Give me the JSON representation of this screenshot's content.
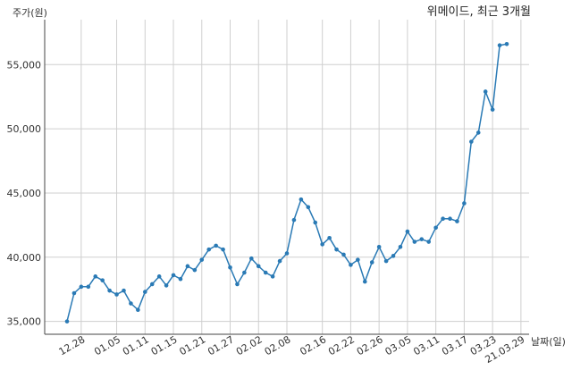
{
  "chart_data": {
    "type": "line",
    "title": "위메이드, 최근 3개월",
    "ylabel": "주가(원)",
    "xlabel": "날짜(일)",
    "ylim": [
      34000,
      58500
    ],
    "yticks": [
      35000,
      40000,
      45000,
      50000,
      55000
    ],
    "ytick_labels": [
      "35,000",
      "40,000",
      "45,000",
      "50,000",
      "55,000"
    ],
    "grid": true,
    "legend": "none",
    "colors": {
      "line": "#2a7ab5",
      "grid": "#cfcfcf",
      "axis": "#444444"
    },
    "xtick_labels": [
      "12.28",
      "01.05",
      "01.11",
      "01.15",
      "01.21",
      "01.27",
      "02.02",
      "02.08",
      "02.16",
      "02.22",
      "02.26",
      "03.05",
      "03.11",
      "03.17",
      "03.23",
      "21.03.29"
    ],
    "xtick_positions": [
      2,
      7,
      11,
      15,
      19,
      23,
      27,
      31,
      36,
      40,
      44,
      48,
      52,
      56,
      60,
      64
    ],
    "series": [
      {
        "values": [
          35000,
          37200,
          37700,
          37700,
          38500,
          38200,
          37400,
          37100,
          37400,
          36400,
          35900,
          37300,
          37900,
          38500,
          37800,
          38600,
          38300,
          39300,
          39000,
          39800,
          40600,
          40900,
          40600,
          39200,
          37900,
          38800,
          39900,
          39300,
          38800,
          38500,
          39700,
          40300,
          42900,
          44500,
          43900,
          42700,
          41000,
          41500,
          40600,
          40200,
          39400,
          39800,
          38100,
          39600,
          40800,
          39700,
          40100,
          40800,
          42000,
          41200,
          41400,
          41200,
          42300,
          43000,
          43000,
          42800,
          44200,
          49000,
          49700,
          52900,
          51500,
          56500,
          56600
        ]
      }
    ]
  }
}
